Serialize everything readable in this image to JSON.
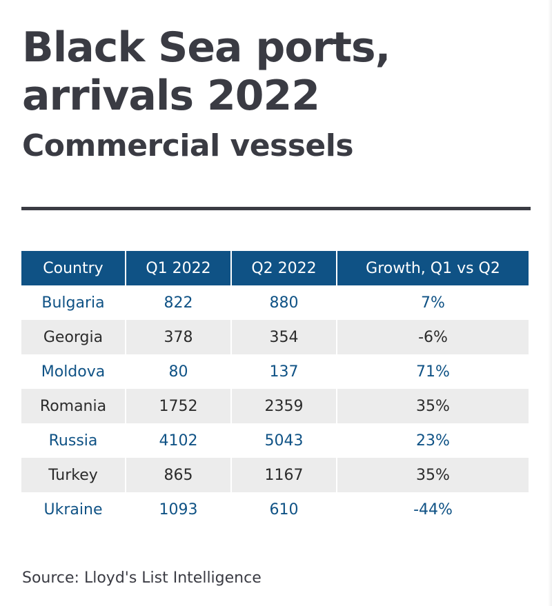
{
  "header": {
    "title_line1": "Black Sea ports,",
    "title_line2": "arrivals 2022",
    "subtitle": "Commercial vessels"
  },
  "colors": {
    "title_text": "#3a3b43",
    "header_fill": "#0f5285",
    "accent_text": "#0f5285",
    "stripe_fill": "#ececec"
  },
  "table": {
    "columns": [
      "Country",
      "Q1 2022",
      "Q2 2022",
      "Growth, Q1 vs Q2"
    ],
    "rows": [
      [
        "Bulgaria",
        "822",
        "880",
        "7%"
      ],
      [
        "Georgia",
        "378",
        "354",
        "-6%"
      ],
      [
        "Moldova",
        "80",
        "137",
        "71%"
      ],
      [
        "Romania",
        "1752",
        "2359",
        "35%"
      ],
      [
        "Russia",
        "4102",
        "5043",
        "23%"
      ],
      [
        "Turkey",
        "865",
        "1167",
        "35%"
      ],
      [
        "Ukraine",
        "1093",
        "610",
        "-44%"
      ]
    ]
  },
  "footer": {
    "source": "Source: Lloyd's List Intelligence"
  }
}
